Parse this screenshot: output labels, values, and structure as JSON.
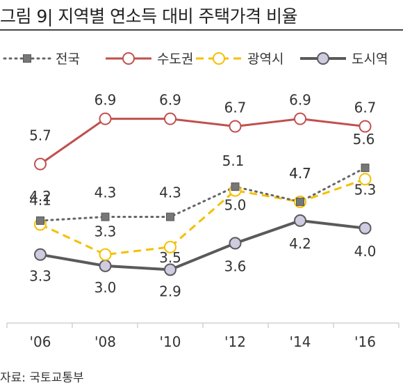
{
  "title": "그림 9| 지역별 연소득 대비 주택가격 비율",
  "source": "자료: 국토교통부",
  "chart_data": {
    "type": "line",
    "categories": [
      "'06",
      "'08",
      "'10",
      "'12",
      "'14",
      "'16"
    ],
    "ylim": [
      2.5,
      7.3
    ],
    "grid": false,
    "legend_position": "top",
    "series": [
      {
        "name": "전국",
        "values": [
          4.2,
          4.3,
          4.3,
          5.1,
          4.7,
          5.6
        ],
        "color": "#666666",
        "style": "dotted",
        "marker": "square"
      },
      {
        "name": "수도권",
        "values": [
          5.7,
          6.9,
          6.9,
          6.7,
          6.9,
          6.7
        ],
        "color": "#c0504d",
        "style": "solid",
        "marker": "circle-hollow"
      },
      {
        "name": "광역시",
        "values": [
          4.1,
          3.3,
          3.5,
          5.0,
          4.7,
          5.3
        ],
        "color": "#f5bf00",
        "style": "dashed",
        "marker": "circle-hollow"
      },
      {
        "name": "도시역",
        "values": [
          3.3,
          3.0,
          2.9,
          3.6,
          4.2,
          4.0
        ],
        "color": "#5a5a5a",
        "style": "solid",
        "marker": "circle-filled",
        "marker_fill": "#cfcbe0"
      }
    ],
    "data_labels": [
      {
        "text": "5.7",
        "series": 1,
        "index": 0
      },
      {
        "text": "6.9",
        "series": 1,
        "index": 1
      },
      {
        "text": "6.9",
        "series": 1,
        "index": 2
      },
      {
        "text": "6.7",
        "series": 1,
        "index": 3
      },
      {
        "text": "6.9",
        "series": 1,
        "index": 4
      },
      {
        "text": "6.7",
        "series": 1,
        "index": 5
      },
      {
        "text": "4.2",
        "series": 0,
        "index": 0
      },
      {
        "text": "4.3",
        "series": 0,
        "index": 1
      },
      {
        "text": "4.3",
        "series": 0,
        "index": 2
      },
      {
        "text": "5.1",
        "series": 0,
        "index": 3
      },
      {
        "text": "4.7",
        "series": 0,
        "index": 4
      },
      {
        "text": "5.6",
        "series": 0,
        "index": 5
      },
      {
        "text": "4.1",
        "series": 2,
        "index": 0
      },
      {
        "text": "3.3",
        "series": 2,
        "index": 1
      },
      {
        "text": "3.5",
        "series": 2,
        "index": 2
      },
      {
        "text": "5.0",
        "series": 2,
        "index": 3
      },
      {
        "text": "4.7",
        "series": 2,
        "index": 4
      },
      {
        "text": "5.3",
        "series": 2,
        "index": 5
      },
      {
        "text": "3.3",
        "series": 3,
        "index": 0
      },
      {
        "text": "3.0",
        "series": 3,
        "index": 1
      },
      {
        "text": "2.9",
        "series": 3,
        "index": 2
      },
      {
        "text": "3.6",
        "series": 3,
        "index": 3
      },
      {
        "text": "4.2",
        "series": 3,
        "index": 4
      },
      {
        "text": "4.0",
        "series": 3,
        "index": 5
      }
    ]
  }
}
